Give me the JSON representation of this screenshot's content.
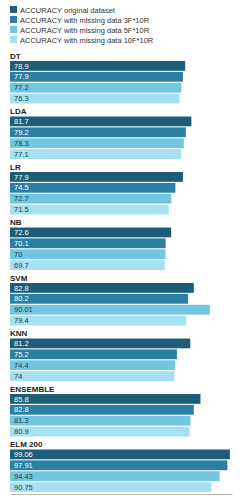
{
  "chart_data": {
    "type": "bar",
    "orientation": "horizontal",
    "data_labels": true,
    "tick_labels": false,
    "legend": "top",
    "categories": [
      "DT",
      "LDA",
      "LR",
      "NB",
      "SVM",
      "KNN",
      "ENSEMBLE",
      "ELM 200"
    ],
    "xlim": [
      0,
      100
    ],
    "series": [
      {
        "name": "ACCURACY original dataset",
        "color": "#1d5d78",
        "values": [
          78.9,
          81.7,
          77.9,
          72.6,
          82.8,
          81.2,
          85.8,
          99.06
        ]
      },
      {
        "name": "ACCURACY with missing data 3F*10R",
        "color": "#2a7fa2",
        "values": [
          77.9,
          79.2,
          74.5,
          70.1,
          80.2,
          75.2,
          82.8,
          97.91
        ]
      },
      {
        "name": "ACCURACY with missing data 5F*10R",
        "color": "#74c6e0",
        "values": [
          77.2,
          78.3,
          72.7,
          70,
          90.01,
          74.4,
          81.3,
          94.43
        ]
      },
      {
        "name": "ACCURACY with missing data 10F*10R",
        "color": "#a6e1f1",
        "values": [
          76.3,
          77.1,
          71.5,
          69.7,
          79.4,
          74,
          80.9,
          90.75
        ]
      }
    ]
  }
}
